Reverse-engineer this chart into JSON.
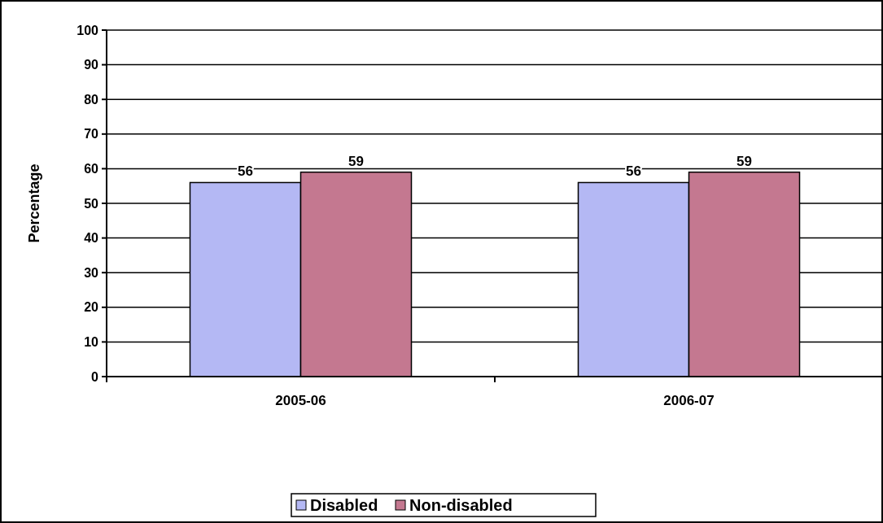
{
  "chart_data": {
    "type": "bar",
    "ylabel": "Percentage",
    "categories": [
      "2005-06",
      "2006-07"
    ],
    "series": [
      {
        "name": "Disabled",
        "color": "#b4b8f4",
        "values": [
          56,
          56
        ]
      },
      {
        "name": "Non-disabled",
        "color": "#c47890",
        "values": [
          59,
          59
        ]
      }
    ],
    "ylim": [
      0,
      100
    ],
    "yticks": [
      0,
      10,
      20,
      30,
      40,
      50,
      60,
      70,
      80,
      90,
      100
    ],
    "grid": "y",
    "legend": "bottom",
    "data_labels": true
  }
}
